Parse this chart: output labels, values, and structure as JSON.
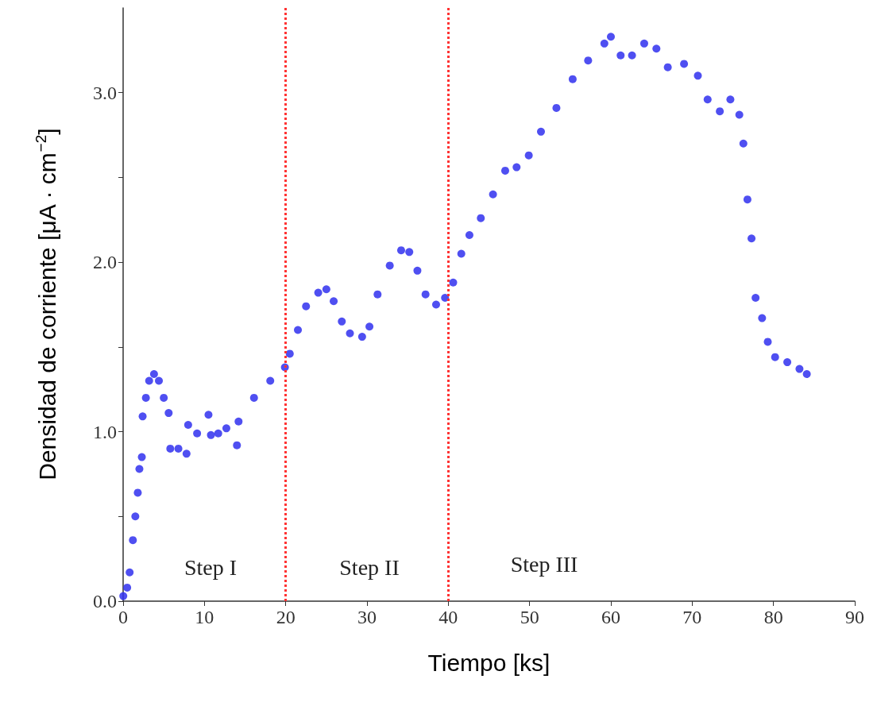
{
  "chart_data": {
    "type": "scatter",
    "xlabel": "Tiempo [ks]",
    "ylabel": "Densidad de corriente [μA · cm$^{−2}$]",
    "xlim": [
      0,
      90
    ],
    "xticks": [
      0,
      10,
      20,
      30,
      40,
      50,
      60,
      70,
      80,
      90
    ],
    "ylim": [
      0,
      3.5
    ],
    "yticks": [
      {
        "value": 0,
        "label": "0.0"
      },
      {
        "value": 0.5,
        "label": null
      },
      {
        "value": 1,
        "label": "1.0"
      },
      {
        "value": 1.5,
        "label": null
      },
      {
        "value": 2,
        "label": "2.0"
      },
      {
        "value": 2.5,
        "label": null
      },
      {
        "value": 3,
        "label": "3.0"
      }
    ],
    "grid": false,
    "marker": "circle",
    "series": [
      {
        "color": "#3030ee",
        "x": [
          0.02,
          0.5,
          0.8,
          1.2,
          1.5,
          1.8,
          2.0,
          2.3,
          2.4,
          2.8,
          3.2,
          3.8,
          4.4,
          5.0,
          5.6,
          5.8,
          6.8,
          7.8,
          8.0,
          9.1,
          10.5,
          10.8,
          11.7,
          12.7,
          14.0,
          14.2,
          16.1,
          18.1,
          19.9,
          20.5,
          21.5,
          22.5,
          24.0,
          25.0,
          25.9,
          26.9,
          27.9,
          29.4,
          30.3,
          31.3,
          32.8,
          34.2,
          35.2,
          36.2,
          37.2,
          38.5,
          39.6,
          40.6,
          41.6,
          42.6,
          44.0,
          45.5,
          47.0,
          48.4,
          49.9,
          51.4,
          53.3,
          55.3,
          57.2,
          59.2,
          60.0,
          61.2,
          62.6,
          64.1,
          65.6,
          67.0,
          69.0,
          70.7,
          71.9,
          73.4,
          74.7,
          75.8,
          76.3,
          76.8,
          77.3,
          77.8,
          78.6,
          79.3,
          80.2,
          81.7,
          83.2,
          84.1
        ],
        "values": [
          0.03,
          0.08,
          0.17,
          0.36,
          0.5,
          0.64,
          0.78,
          0.85,
          1.09,
          1.2,
          1.3,
          1.34,
          1.3,
          1.2,
          1.11,
          0.9,
          0.9,
          0.87,
          1.04,
          0.99,
          1.1,
          0.98,
          0.99,
          1.02,
          0.92,
          1.06,
          1.2,
          1.3,
          1.38,
          1.46,
          1.6,
          1.74,
          1.82,
          1.84,
          1.77,
          1.65,
          1.58,
          1.56,
          1.62,
          1.81,
          1.98,
          2.07,
          2.06,
          1.95,
          1.81,
          1.75,
          1.79,
          1.88,
          2.05,
          2.16,
          2.26,
          2.4,
          2.54,
          2.56,
          2.63,
          2.77,
          2.91,
          3.08,
          3.19,
          3.29,
          3.33,
          3.22,
          3.22,
          3.29,
          3.26,
          3.15,
          3.17,
          3.1,
          2.96,
          2.89,
          2.96,
          2.87,
          2.7,
          2.37,
          2.14,
          1.79,
          1.67,
          1.53,
          1.44,
          1.41,
          1.37,
          1.34
        ]
      }
    ],
    "ref_lines": [
      {
        "axis": "x",
        "value": 20,
        "color": "#ff3333",
        "line_style": "dotted"
      },
      {
        "axis": "x",
        "value": 40,
        "color": "#ff3333",
        "line_style": "dotted"
      }
    ],
    "annotations": [
      "Step I",
      "Step II",
      "Step III"
    ]
  }
}
